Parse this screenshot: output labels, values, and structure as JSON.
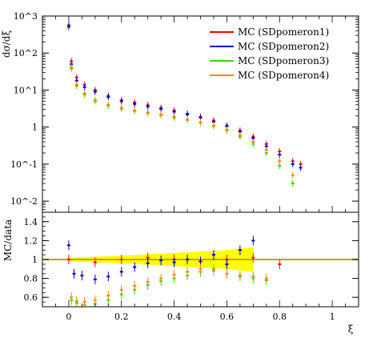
{
  "colors": {
    "SDpomeron1": "#ff0000",
    "SDpomeron2": "#0000cc",
    "SDpomeron3": "#33dd00",
    "SDpomeron4": "#ff8800",
    "band": "#ffff00",
    "ratio_line": "#c8a000"
  },
  "chart_data": [
    {
      "type": "scatter",
      "panel": "main",
      "ylabel": "dσ/dξ",
      "yscale": "log",
      "xlim": [
        -0.1,
        1.1
      ],
      "ylim": [
        0.005,
        1000
      ],
      "ytick_labels": [
        "10^-2",
        "10^-1",
        "1",
        "10^1",
        "10^2",
        "10^3"
      ],
      "legend_position": "top-right",
      "series": [
        {
          "name": "MC (SDpomeron1)",
          "key": "SDpomeron1",
          "x": [
            0.0,
            0.01,
            0.03,
            0.06,
            0.1,
            0.15,
            0.2,
            0.25,
            0.3,
            0.35,
            0.4,
            0.45,
            0.5,
            0.55,
            0.6,
            0.65,
            0.7,
            0.75,
            0.8,
            0.85,
            0.88
          ],
          "y": [
            500,
            60,
            22,
            14,
            10,
            7,
            5.3,
            4.6,
            3.9,
            3.3,
            2.8,
            2.3,
            1.9,
            1.5,
            1.1,
            0.8,
            0.55,
            0.35,
            0.22,
            0.12,
            0.1
          ]
        },
        {
          "name": "MC (SDpomeron2)",
          "key": "SDpomeron2",
          "x": [
            0.0,
            0.01,
            0.03,
            0.06,
            0.1,
            0.15,
            0.2,
            0.25,
            0.3,
            0.35,
            0.4,
            0.45,
            0.5,
            0.55,
            0.6,
            0.65,
            0.7,
            0.75,
            0.8,
            0.85,
            0.88
          ],
          "y": [
            560,
            50,
            18,
            12,
            9,
            6.5,
            5.0,
            4.2,
            3.6,
            3.1,
            2.6,
            2.2,
            1.8,
            1.4,
            1.05,
            0.75,
            0.5,
            0.3,
            0.18,
            0.1,
            0.08
          ]
        },
        {
          "name": "MC (SDpomeron3)",
          "key": "SDpomeron3",
          "x": [
            0.01,
            0.03,
            0.06,
            0.1,
            0.15,
            0.2,
            0.25,
            0.3,
            0.35,
            0.4,
            0.45,
            0.5,
            0.55,
            0.6,
            0.65,
            0.7,
            0.75,
            0.8,
            0.85
          ],
          "y": [
            38,
            13,
            7.5,
            5.0,
            3.8,
            3.1,
            2.7,
            2.4,
            2.1,
            1.8,
            1.55,
            1.3,
            1.05,
            0.8,
            0.55,
            0.35,
            0.2,
            0.09,
            0.03
          ]
        },
        {
          "name": "MC (SDpomeron4)",
          "key": "SDpomeron4",
          "x": [
            0.01,
            0.03,
            0.06,
            0.1,
            0.15,
            0.2,
            0.25,
            0.3,
            0.35,
            0.4,
            0.45,
            0.5,
            0.55,
            0.6,
            0.65,
            0.7,
            0.75,
            0.8,
            0.85
          ],
          "y": [
            42,
            14,
            8,
            5.4,
            4.0,
            3.3,
            2.8,
            2.5,
            2.2,
            1.9,
            1.6,
            1.35,
            1.1,
            0.85,
            0.6,
            0.4,
            0.24,
            0.12,
            0.05
          ]
        }
      ]
    },
    {
      "type": "scatter",
      "panel": "ratio",
      "xlabel": "ξ",
      "ylabel": "MC/data",
      "xlim": [
        -0.1,
        1.1
      ],
      "ylim": [
        0.5,
        1.5
      ],
      "xticks": [
        0,
        0.2,
        0.4,
        0.6,
        0.8,
        1
      ],
      "yticks": [
        0.6,
        0.8,
        1,
        1.2,
        1.4
      ],
      "reference_line": 1,
      "band": {
        "x": [
          0.0,
          0.2,
          0.4,
          0.6,
          0.7
        ],
        "upper": [
          1.02,
          1.04,
          1.07,
          1.1,
          1.13
        ],
        "lower": [
          0.98,
          0.96,
          0.93,
          0.9,
          0.87
        ]
      },
      "series": [
        {
          "name": "MC (SDpomeron1)",
          "key": "SDpomeron1",
          "x": [
            0.0,
            0.1,
            0.2,
            0.3,
            0.4,
            0.5,
            0.6,
            0.7,
            0.8
          ],
          "y": [
            1.0,
            0.97,
            1.0,
            1.02,
            1.0,
            0.98,
            1.0,
            1.02,
            0.95
          ]
        },
        {
          "name": "MC (SDpomeron2)",
          "key": "SDpomeron2",
          "x": [
            0.0,
            0.02,
            0.05,
            0.1,
            0.15,
            0.2,
            0.25,
            0.3,
            0.35,
            0.4,
            0.45,
            0.5,
            0.55,
            0.6,
            0.65,
            0.7
          ],
          "y": [
            1.15,
            0.85,
            0.83,
            0.79,
            0.82,
            0.87,
            0.92,
            0.96,
            0.99,
            0.97,
            1.0,
            0.98,
            1.05,
            0.95,
            1.1,
            1.2
          ]
        },
        {
          "name": "MC (SDpomeron3)",
          "key": "SDpomeron3",
          "x": [
            0.01,
            0.03,
            0.06,
            0.1,
            0.15,
            0.2,
            0.25,
            0.3,
            0.35,
            0.4,
            0.45,
            0.5,
            0.55,
            0.6,
            0.65,
            0.7,
            0.75
          ],
          "y": [
            0.57,
            0.54,
            0.52,
            0.53,
            0.57,
            0.63,
            0.68,
            0.73,
            0.77,
            0.8,
            0.83,
            0.87,
            0.9,
            0.85,
            0.82,
            0.8,
            0.78
          ]
        },
        {
          "name": "MC (SDpomeron4)",
          "key": "SDpomeron4",
          "x": [
            0.01,
            0.03,
            0.06,
            0.1,
            0.15,
            0.2,
            0.25,
            0.3,
            0.35,
            0.4,
            0.45,
            0.5,
            0.55,
            0.6,
            0.65,
            0.7,
            0.75
          ],
          "y": [
            0.6,
            0.56,
            0.55,
            0.57,
            0.62,
            0.68,
            0.72,
            0.76,
            0.8,
            0.84,
            0.87,
            0.9,
            0.88,
            0.85,
            0.83,
            0.82,
            0.8
          ]
        }
      ]
    }
  ]
}
